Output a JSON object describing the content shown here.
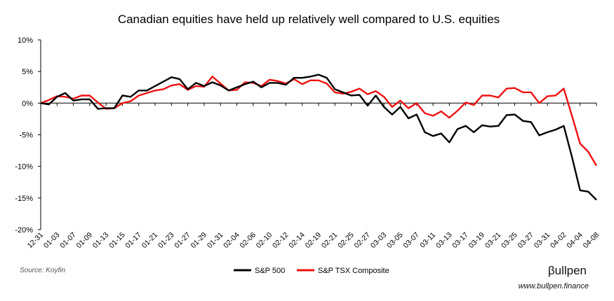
{
  "chart_data": {
    "type": "line",
    "title": "Canadian equities have held up relatively well compared to U.S. equities",
    "xlabel": "",
    "ylabel": "",
    "ylim": [
      -20,
      10
    ],
    "yticks": [
      "10%",
      "5%",
      "0%",
      "-5%",
      "-10%",
      "-15%",
      "-20%"
    ],
    "ytick_values": [
      10,
      5,
      0,
      -5,
      -10,
      -15,
      -20
    ],
    "x_tick_labels": [
      "12-31",
      "01-03",
      "01-07",
      "01-09",
      "01-13",
      "01-15",
      "01-17",
      "01-21",
      "01-23",
      "01-27",
      "01-29",
      "01-31",
      "02-04",
      "02-06",
      "02-10",
      "02-12",
      "02-14",
      "02-19",
      "02-21",
      "02-25",
      "02-27",
      "03-03",
      "03-05",
      "03-07",
      "03-11",
      "03-13",
      "03-17",
      "03-19",
      "03-21",
      "03-25",
      "03-27",
      "03-31",
      "04-02",
      "04-04",
      "04-08"
    ],
    "grid": false,
    "legend_position": "bottom",
    "series": [
      {
        "name": "S&P 500",
        "color": "#000000",
        "values": [
          0,
          -0.2,
          1.0,
          1.6,
          0.4,
          0.6,
          0.6,
          -0.9,
          -0.8,
          -0.8,
          1.2,
          1.0,
          2.0,
          2.0,
          2.7,
          3.4,
          4.1,
          3.8,
          2.2,
          3.2,
          2.7,
          3.3,
          2.8,
          2.0,
          2.5,
          3.0,
          3.4,
          2.5,
          3.2,
          3.2,
          2.9,
          4.0,
          4.0,
          4.2,
          4.5,
          4.0,
          2.2,
          1.7,
          1.2,
          1.3,
          -0.4,
          1.2,
          -0.6,
          -1.8,
          -0.6,
          -2.4,
          -1.8,
          -4.6,
          -5.2,
          -4.8,
          -6.2,
          -4.1,
          -3.6,
          -4.6,
          -3.5,
          -3.7,
          -3.6,
          -1.9,
          -1.8,
          -2.8,
          -3.0,
          -5.1,
          -4.6,
          -4.2,
          -3.6,
          -8.5,
          -13.8,
          -14.0,
          -15.3
        ]
      },
      {
        "name": "S&P TSX Composite",
        "color": "#ee1111",
        "values": [
          0,
          0.5,
          1.1,
          1.0,
          0.7,
          1.2,
          1.2,
          0.1,
          -0.9,
          -0.8,
          0.0,
          0.3,
          1.2,
          1.6,
          2.0,
          2.2,
          2.8,
          3.0,
          2.1,
          2.7,
          2.6,
          4.2,
          3.1,
          2.0,
          2.1,
          3.3,
          3.2,
          2.7,
          3.7,
          3.5,
          3.1,
          3.8,
          3.0,
          3.6,
          3.6,
          3.1,
          1.7,
          1.5,
          1.8,
          2.3,
          1.4,
          1.9,
          1.0,
          -0.6,
          0.4,
          -0.8,
          0.0,
          -1.6,
          -2.0,
          -1.3,
          -2.3,
          -1.2,
          0.1,
          -0.3,
          1.2,
          1.2,
          0.9,
          2.3,
          2.4,
          1.7,
          1.7,
          0.0,
          1.1,
          1.2,
          2.3,
          -2.0,
          -6.4,
          -7.7,
          -9.9
        ]
      }
    ]
  },
  "source_text": "Source: Koyfin",
  "brand": {
    "logo_text": "βullpen",
    "website": "www.bullpen.finance"
  }
}
